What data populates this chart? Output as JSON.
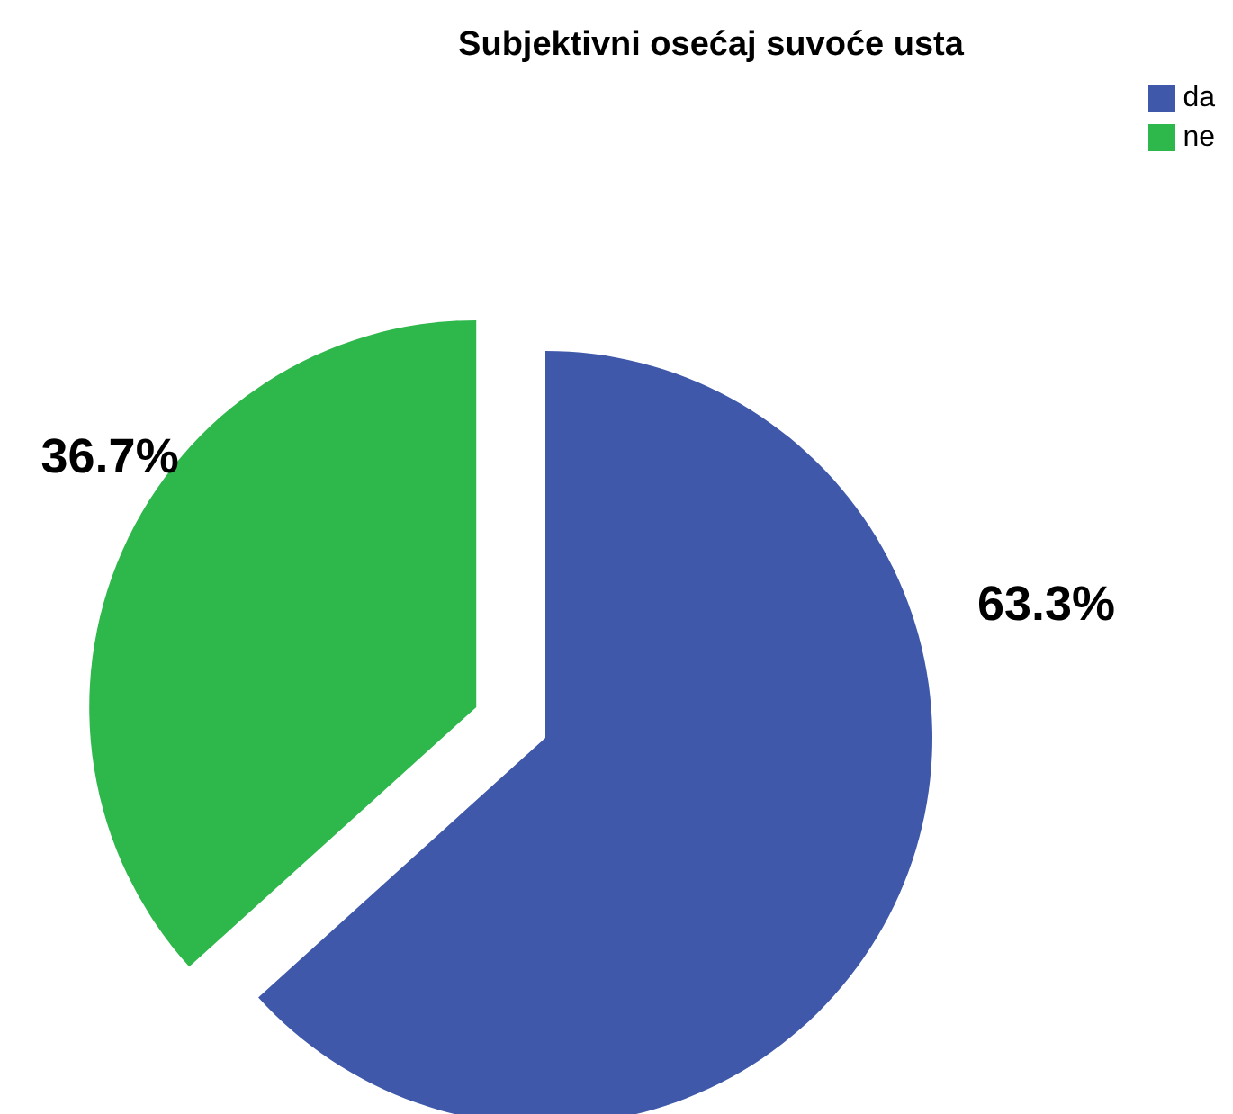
{
  "chart_data": {
    "type": "pie",
    "title": "Subjektivni osećaj suvoće usta",
    "categories": [
      "da",
      "ne"
    ],
    "values": [
      63.3,
      36.7
    ],
    "colors": [
      "#3f58aa",
      "#2eb74a"
    ],
    "value_labels": [
      "63.3%",
      "36.7%"
    ],
    "legend": "top right"
  }
}
